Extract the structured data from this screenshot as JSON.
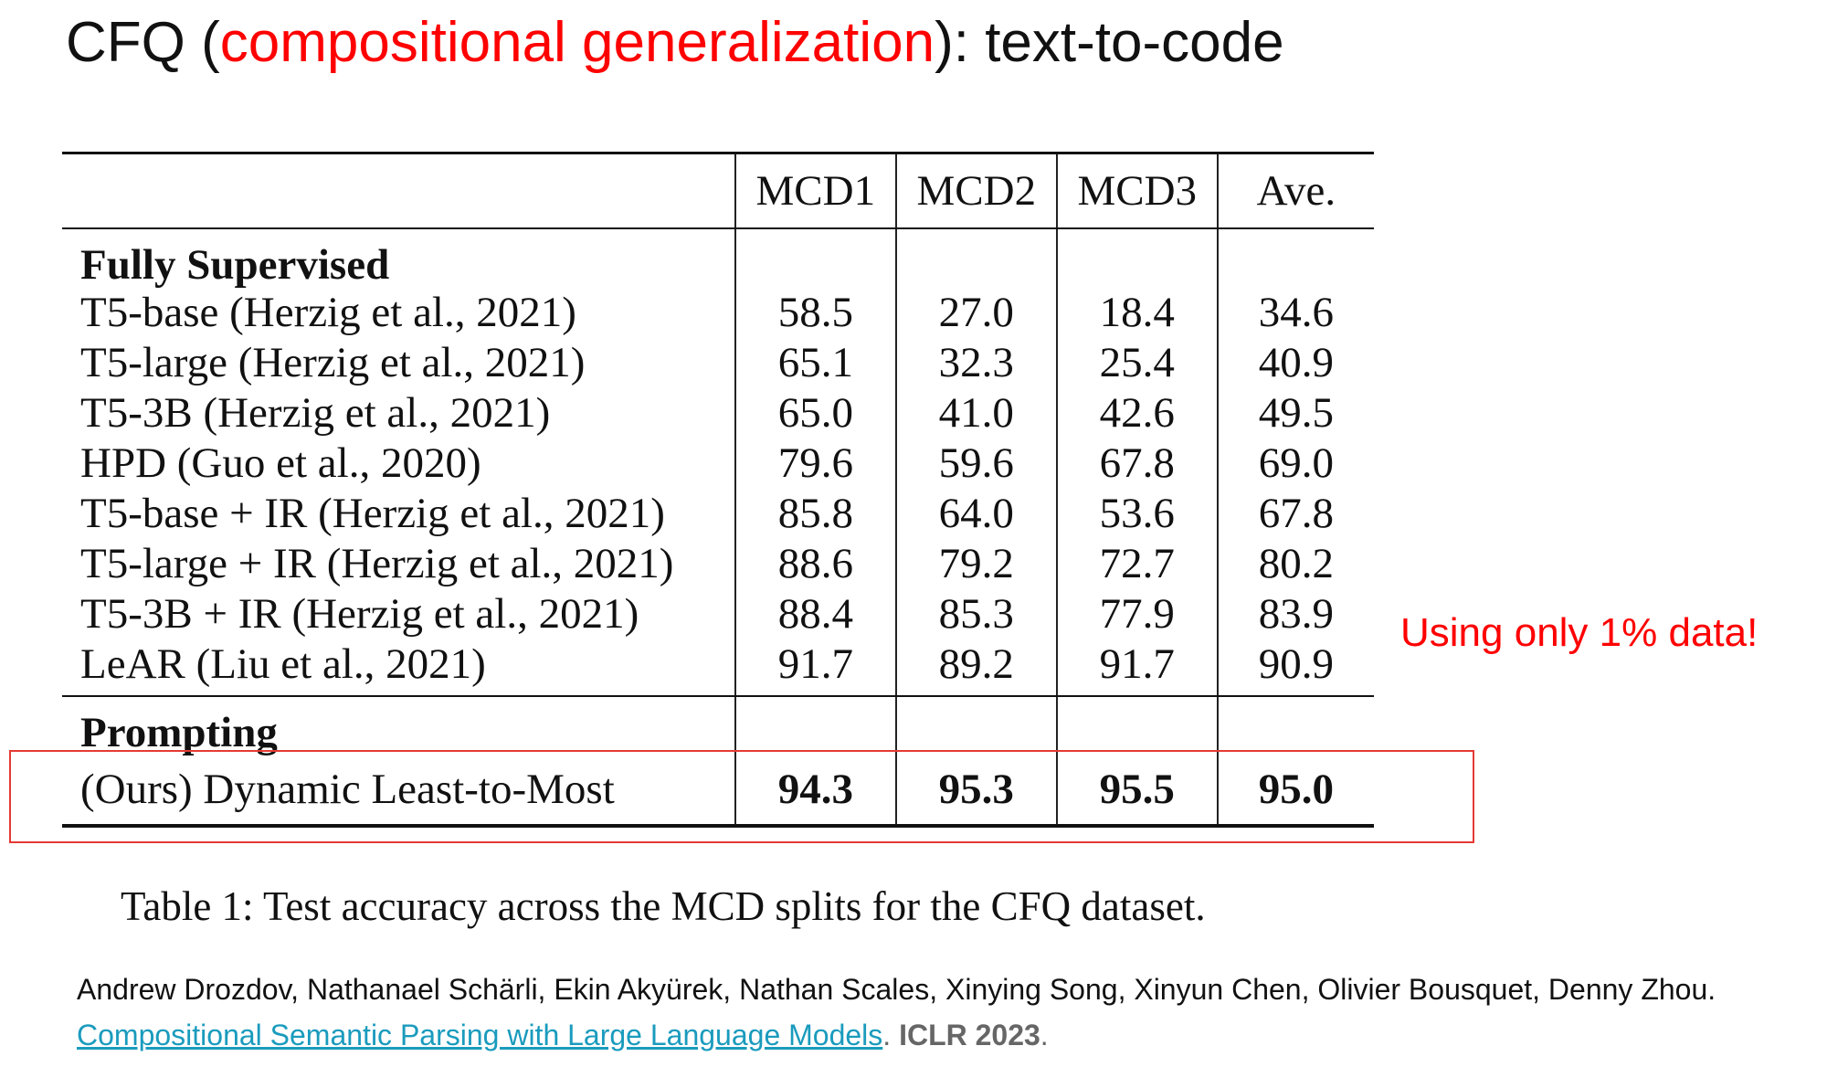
{
  "title": {
    "prefix": "CFQ (",
    "highlight": "compositional generalization",
    "suffix": "): text-to-code"
  },
  "table": {
    "columns": [
      "MCD1",
      "MCD2",
      "MCD3",
      "Ave."
    ],
    "sections": [
      {
        "label": "Fully Supervised",
        "rows": [
          {
            "method": "T5-base (Herzig et al., 2021)",
            "values": [
              "58.5",
              "27.0",
              "18.4",
              "34.6"
            ]
          },
          {
            "method": "T5-large (Herzig et al., 2021)",
            "values": [
              "65.1",
              "32.3",
              "25.4",
              "40.9"
            ]
          },
          {
            "method": "T5-3B (Herzig et al., 2021)",
            "values": [
              "65.0",
              "41.0",
              "42.6",
              "49.5"
            ]
          },
          {
            "method": "HPD (Guo et al., 2020)",
            "values": [
              "79.6",
              "59.6",
              "67.8",
              "69.0"
            ]
          },
          {
            "method": "T5-base + IR (Herzig et al., 2021)",
            "values": [
              "85.8",
              "64.0",
              "53.6",
              "67.8"
            ]
          },
          {
            "method": "T5-large + IR (Herzig et al., 2021)",
            "values": [
              "88.6",
              "79.2",
              "72.7",
              "80.2"
            ]
          },
          {
            "method": "T5-3B + IR (Herzig et al., 2021)",
            "values": [
              "88.4",
              "85.3",
              "77.9",
              "83.9"
            ]
          },
          {
            "method": "LeAR (Liu et al., 2021)",
            "values": [
              "91.7",
              "89.2",
              "91.7",
              "90.9"
            ]
          }
        ]
      },
      {
        "label": "Prompting",
        "rows": [
          {
            "method": "(Ours) Dynamic Least-to-Most",
            "values": [
              "94.3",
              "95.3",
              "95.5",
              "95.0"
            ]
          }
        ]
      }
    ]
  },
  "callout": "Using only 1% data!",
  "caption": "Table 1: Test accuracy across the MCD splits for the CFQ dataset.",
  "citation": {
    "authors": "Andrew Drozdov, Nathanael Schärli, Ekin Akyürek, Nathan Scales, Xinying Song, Xinyun Chen, Olivier Bousquet, Denny Zhou.",
    "link_text": "Compositional Semantic Parsing with Large Language Models",
    "after_link": ".",
    "venue": "ICLR 2023",
    "end": "."
  },
  "colors": {
    "highlight": "#ff0000",
    "link": "#1a9bbd",
    "box": "#e53935"
  }
}
